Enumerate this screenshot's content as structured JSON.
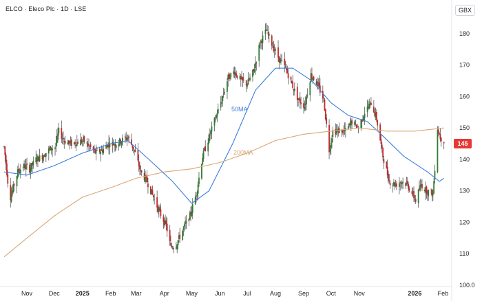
{
  "header": {
    "symbol": "ELCO",
    "sep1": " · ",
    "name": "Eleco Plc",
    "sep2": " · ",
    "interval": "1D",
    "sep3": " · ",
    "exchange": "LSE"
  },
  "currency": "GBX",
  "colors": {
    "up": "#2e7d32",
    "down": "#c62828",
    "wick": "#555555",
    "ma50": "#3b7ddd",
    "ma200": "#d9a676",
    "last_price_bg": "#e53935"
  },
  "chart_data": {
    "type": "candlestick",
    "title": "ELCO · Eleco Plc · 1D · LSE",
    "y_axis": {
      "min": 100,
      "max": 185,
      "ticks": [
        "100.0",
        "110",
        "120",
        "130",
        "140",
        "150",
        "160",
        "170",
        "180"
      ],
      "unit": "GBX",
      "side": "right"
    },
    "x_axis": {
      "ticks": [
        {
          "label": "Nov",
          "date": "2024-11-01",
          "bold": false
        },
        {
          "label": "Dec",
          "date": "2024-12-01",
          "bold": false
        },
        {
          "label": "2025",
          "date": "2025-01-01",
          "bold": true
        },
        {
          "label": "Feb",
          "date": "2025-02-01",
          "bold": false
        },
        {
          "label": "Mar",
          "date": "2025-03-01",
          "bold": false
        },
        {
          "label": "Apr",
          "date": "2025-04-01",
          "bold": false
        },
        {
          "label": "May",
          "date": "2025-05-01",
          "bold": false
        },
        {
          "label": "Jun",
          "date": "2025-06-01",
          "bold": false
        },
        {
          "label": "Jul",
          "date": "2025-07-01",
          "bold": false
        },
        {
          "label": "Aug",
          "date": "2025-08-01",
          "bold": false
        },
        {
          "label": "Sep",
          "date": "2025-09-01",
          "bold": false
        },
        {
          "label": "Oct",
          "date": "2025-10-01",
          "bold": false
        },
        {
          "label": "Nov",
          "date": "2025-11-01",
          "bold": false
        },
        {
          "label": "2026",
          "date": "2026-01-01",
          "bold": true
        },
        {
          "label": "Feb",
          "date": "2026-02-01",
          "bold": false
        }
      ]
    },
    "price_path": [
      [
        "2024-10-07",
        144
      ],
      [
        "2024-10-10",
        136
      ],
      [
        "2024-10-13",
        127
      ],
      [
        "2024-10-17",
        131
      ],
      [
        "2024-10-22",
        136
      ],
      [
        "2024-10-28",
        138
      ],
      [
        "2024-11-04",
        137
      ],
      [
        "2024-11-11",
        140
      ],
      [
        "2024-11-18",
        141
      ],
      [
        "2024-11-25",
        143
      ],
      [
        "2024-12-02",
        144
      ],
      [
        "2024-12-06",
        149
      ],
      [
        "2024-12-12",
        146
      ],
      [
        "2024-12-19",
        145
      ],
      [
        "2025-01-02",
        146
      ],
      [
        "2025-01-09",
        144
      ],
      [
        "2025-01-16",
        142
      ],
      [
        "2025-01-23",
        143
      ],
      [
        "2025-01-30",
        145
      ],
      [
        "2025-02-06",
        145
      ],
      [
        "2025-02-13",
        146
      ],
      [
        "2025-02-20",
        147
      ],
      [
        "2025-02-27",
        143
      ],
      [
        "2025-03-06",
        136
      ],
      [
        "2025-03-13",
        133
      ],
      [
        "2025-03-20",
        128
      ],
      [
        "2025-03-27",
        123
      ],
      [
        "2025-04-03",
        119
      ],
      [
        "2025-04-08",
        112
      ],
      [
        "2025-04-14",
        113
      ],
      [
        "2025-04-22",
        118
      ],
      [
        "2025-04-29",
        122
      ],
      [
        "2025-05-06",
        129
      ],
      [
        "2025-05-13",
        141
      ],
      [
        "2025-05-20",
        147
      ],
      [
        "2025-05-27",
        153
      ],
      [
        "2025-06-03",
        159
      ],
      [
        "2025-06-10",
        166
      ],
      [
        "2025-06-17",
        168
      ],
      [
        "2025-06-24",
        165
      ],
      [
        "2025-07-01",
        164
      ],
      [
        "2025-07-08",
        168
      ],
      [
        "2025-07-15",
        177
      ],
      [
        "2025-07-22",
        181
      ],
      [
        "2025-07-29",
        176
      ],
      [
        "2025-08-05",
        172
      ],
      [
        "2025-08-12",
        169
      ],
      [
        "2025-08-19",
        164
      ],
      [
        "2025-08-26",
        159
      ],
      [
        "2025-09-02",
        157
      ],
      [
        "2025-09-09",
        167
      ],
      [
        "2025-09-16",
        164
      ],
      [
        "2025-09-23",
        159
      ],
      [
        "2025-09-29",
        143
      ],
      [
        "2025-10-03",
        149
      ],
      [
        "2025-10-10",
        149
      ],
      [
        "2025-10-17",
        149
      ],
      [
        "2025-10-24",
        152
      ],
      [
        "2025-10-31",
        150
      ],
      [
        "2025-11-07",
        155
      ],
      [
        "2025-11-14",
        158
      ],
      [
        "2025-11-20",
        153
      ],
      [
        "2025-11-27",
        141
      ],
      [
        "2025-12-04",
        133
      ],
      [
        "2025-12-11",
        132
      ],
      [
        "2025-12-18",
        133
      ],
      [
        "2025-12-24",
        132
      ],
      [
        "2026-01-02",
        127
      ],
      [
        "2026-01-08",
        132
      ],
      [
        "2026-01-14",
        130
      ],
      [
        "2026-01-21",
        129
      ],
      [
        "2026-01-26",
        150
      ],
      [
        "2026-01-29",
        147
      ],
      [
        "2026-02-02",
        146
      ]
    ],
    "series": [
      {
        "name": "50MA",
        "type": "line",
        "color": "#3b7ddd",
        "points": [
          [
            "2024-10-07",
            136
          ],
          [
            "2024-11-01",
            135
          ],
          [
            "2024-12-01",
            138
          ],
          [
            "2025-01-01",
            142
          ],
          [
            "2025-02-01",
            145
          ],
          [
            "2025-02-20",
            146
          ],
          [
            "2025-03-15",
            140
          ],
          [
            "2025-04-10",
            133
          ],
          [
            "2025-05-01",
            126
          ],
          [
            "2025-05-20",
            130
          ],
          [
            "2025-06-15",
            145
          ],
          [
            "2025-07-10",
            162
          ],
          [
            "2025-08-01",
            169
          ],
          [
            "2025-08-20",
            169
          ],
          [
            "2025-09-10",
            165
          ],
          [
            "2025-10-01",
            158
          ],
          [
            "2025-10-20",
            154
          ],
          [
            "2025-11-10",
            152
          ],
          [
            "2025-11-25",
            148
          ],
          [
            "2025-12-20",
            141
          ],
          [
            "2026-01-15",
            136
          ],
          [
            "2026-01-28",
            133
          ],
          [
            "2026-02-02",
            134
          ]
        ]
      },
      {
        "name": "200MA",
        "type": "line",
        "color": "#d9a676",
        "points": [
          [
            "2024-10-07",
            109
          ],
          [
            "2024-11-01",
            115
          ],
          [
            "2024-12-01",
            122
          ],
          [
            "2025-01-01",
            128
          ],
          [
            "2025-02-01",
            131
          ],
          [
            "2025-03-01",
            134
          ],
          [
            "2025-04-01",
            136
          ],
          [
            "2025-05-01",
            137
          ],
          [
            "2025-06-01",
            139
          ],
          [
            "2025-07-01",
            142
          ],
          [
            "2025-08-01",
            146
          ],
          [
            "2025-09-01",
            148
          ],
          [
            "2025-10-01",
            149
          ],
          [
            "2025-11-01",
            150
          ],
          [
            "2025-12-01",
            149
          ],
          [
            "2026-01-01",
            149
          ],
          [
            "2026-02-02",
            150
          ]
        ]
      }
    ],
    "last_price": 145
  }
}
